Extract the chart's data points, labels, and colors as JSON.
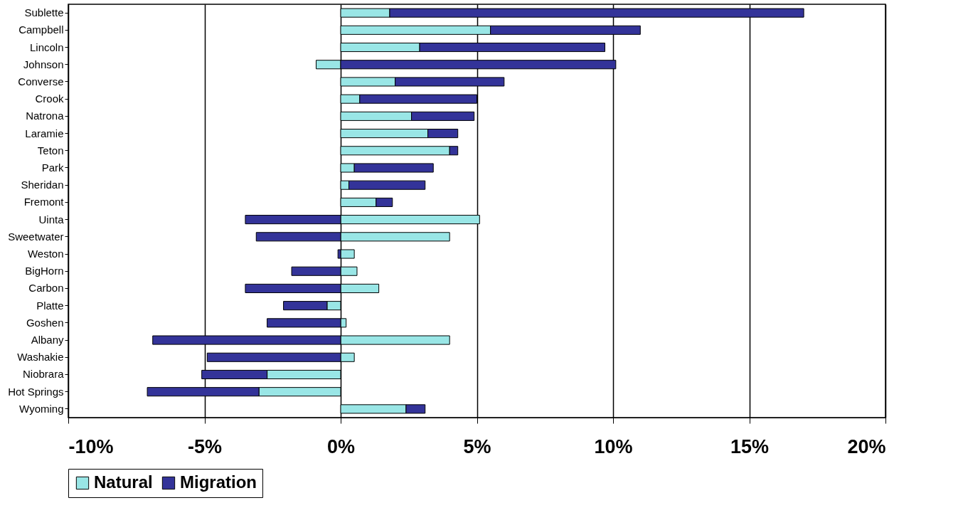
{
  "chart_data": {
    "type": "bar",
    "orientation": "horizontal",
    "stacked": true,
    "categories": [
      "Sublette",
      "Campbell",
      "Lincoln",
      "Johnson",
      "Converse",
      "Crook",
      "Natrona",
      "Laramie",
      "Teton",
      "Park",
      "Sheridan",
      "Fremont",
      "Uinta",
      "Sweetwater",
      "Weston",
      "BigHorn",
      "Carbon",
      "Platte",
      "Goshen",
      "Albany",
      "Washakie",
      "Niobrara",
      "Hot Springs",
      "Wyoming"
    ],
    "series": [
      {
        "name": "Natural",
        "color": "#99e6e6",
        "values": [
          1.8,
          5.5,
          2.9,
          -0.9,
          2.0,
          0.7,
          2.6,
          3.2,
          4.0,
          0.5,
          0.3,
          1.3,
          5.1,
          4.0,
          0.5,
          0.6,
          1.4,
          -0.5,
          0.2,
          4.0,
          0.5,
          -2.7,
          -3.0,
          2.4
        ]
      },
      {
        "name": "Migration",
        "color": "#333399",
        "values": [
          15.2,
          5.5,
          6.8,
          10.1,
          4.0,
          4.3,
          2.3,
          1.1,
          0.3,
          2.9,
          2.8,
          0.6,
          -3.5,
          -3.1,
          -0.1,
          -1.8,
          -3.5,
          -1.6,
          -2.7,
          -6.9,
          -4.9,
          -2.4,
          -4.1,
          0.7
        ]
      }
    ],
    "xlim": [
      -10,
      20
    ],
    "xticks": [
      {
        "value": -10,
        "label": "-10%"
      },
      {
        "value": -5,
        "label": "-5%"
      },
      {
        "value": 0,
        "label": "0%"
      },
      {
        "value": 5,
        "label": "5%"
      },
      {
        "value": 10,
        "label": "10%"
      },
      {
        "value": 15,
        "label": "15%"
      },
      {
        "value": 20,
        "label": "20%"
      }
    ],
    "grid": "x",
    "legend": "bottom"
  }
}
